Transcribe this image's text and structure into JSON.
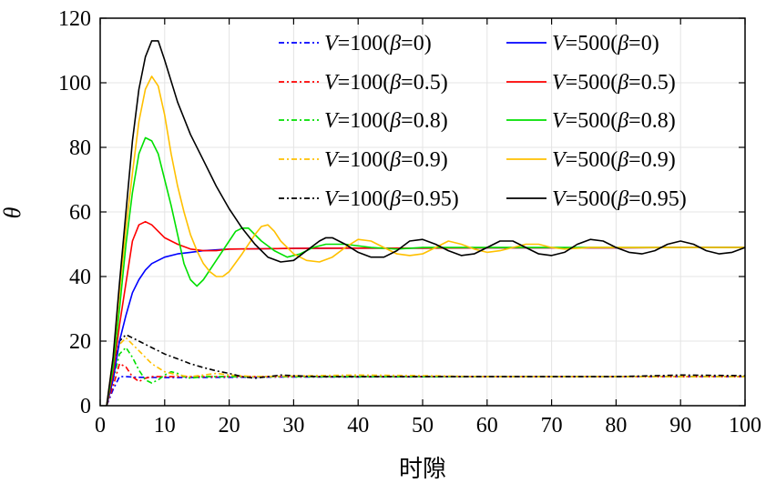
{
  "chart_data": {
    "type": "line",
    "xlabel": "时隙",
    "ylabel": "θ",
    "xlim": [
      0,
      100
    ],
    "ylim": [
      0,
      120
    ],
    "xticks": [
      0,
      10,
      20,
      30,
      40,
      50,
      60,
      70,
      80,
      90,
      100
    ],
    "yticks": [
      0,
      20,
      40,
      60,
      80,
      100,
      120
    ],
    "grid": true,
    "legend_position": "top-right",
    "series": [
      {
        "name": "V=100(β=0)",
        "italic_prefix": "V",
        "rest": "=100(",
        "greek": "β",
        "tail": "=0)",
        "color": "#0000ff",
        "style": "dashdot",
        "points": [
          [
            1,
            0
          ],
          [
            2,
            5
          ],
          [
            3,
            9
          ],
          [
            4,
            9
          ],
          [
            6,
            8.8
          ],
          [
            10,
            8.7
          ],
          [
            20,
            8.8
          ],
          [
            30,
            8.9
          ],
          [
            40,
            8.9
          ],
          [
            60,
            9
          ],
          [
            80,
            9
          ],
          [
            100,
            9
          ]
        ]
      },
      {
        "name": "V=100(β=0.5)",
        "italic_prefix": "V",
        "rest": "=100(",
        "greek": "β",
        "tail": "=0.5)",
        "color": "#ff0000",
        "style": "dashdot",
        "points": [
          [
            1,
            0
          ],
          [
            2,
            6
          ],
          [
            3,
            13
          ],
          [
            4,
            12
          ],
          [
            5,
            9
          ],
          [
            6,
            7.5
          ],
          [
            7,
            8.5
          ],
          [
            8,
            9
          ],
          [
            10,
            9
          ],
          [
            20,
            9
          ],
          [
            40,
            9
          ],
          [
            60,
            9
          ],
          [
            80,
            9
          ],
          [
            100,
            9
          ]
        ]
      },
      {
        "name": "V=100(β=0.8)",
        "italic_prefix": "V",
        "rest": "=100(",
        "greek": "β",
        "tail": "=0.8)",
        "color": "#00e000",
        "style": "dashdot",
        "points": [
          [
            1,
            0
          ],
          [
            2,
            8
          ],
          [
            3,
            16
          ],
          [
            4,
            18
          ],
          [
            5,
            15
          ],
          [
            6,
            11
          ],
          [
            7,
            8
          ],
          [
            8,
            7
          ],
          [
            9,
            8
          ],
          [
            10,
            9.5
          ],
          [
            11,
            10.5
          ],
          [
            12,
            10
          ],
          [
            13,
            9
          ],
          [
            14,
            8.5
          ],
          [
            16,
            9
          ],
          [
            20,
            9
          ],
          [
            30,
            9
          ],
          [
            50,
            9
          ],
          [
            70,
            9
          ],
          [
            100,
            9
          ]
        ]
      },
      {
        "name": "V=100(β=0.9)",
        "italic_prefix": "V",
        "rest": "=100(",
        "greek": "β",
        "tail": "=0.9)",
        "color": "#ffc000",
        "style": "dashdot",
        "points": [
          [
            1,
            0
          ],
          [
            2,
            10
          ],
          [
            3,
            19
          ],
          [
            4,
            21
          ],
          [
            6,
            17
          ],
          [
            8,
            13
          ],
          [
            10,
            10.5
          ],
          [
            12,
            9.5
          ],
          [
            14,
            9
          ],
          [
            16,
            9.5
          ],
          [
            18,
            10
          ],
          [
            20,
            9.5
          ],
          [
            24,
            9
          ],
          [
            30,
            9.2
          ],
          [
            40,
            9.5
          ],
          [
            50,
            9.3
          ],
          [
            60,
            9
          ],
          [
            70,
            9
          ],
          [
            80,
            9
          ],
          [
            90,
            9
          ],
          [
            100,
            9
          ]
        ]
      },
      {
        "name": "V=100(β=0.95)",
        "italic_prefix": "V",
        "rest": "=100(",
        "greek": "β",
        "tail": "=0.95)",
        "color": "#000000",
        "style": "dashdot",
        "points": [
          [
            1,
            0
          ],
          [
            2,
            10
          ],
          [
            3,
            20
          ],
          [
            4,
            22
          ],
          [
            6,
            20
          ],
          [
            8,
            18
          ],
          [
            10,
            16
          ],
          [
            12,
            14.5
          ],
          [
            14,
            13
          ],
          [
            16,
            11.8
          ],
          [
            18,
            10.8
          ],
          [
            20,
            10
          ],
          [
            22,
            9
          ],
          [
            24,
            8.5
          ],
          [
            26,
            9
          ],
          [
            28,
            9.5
          ],
          [
            30,
            9.3
          ],
          [
            34,
            9
          ],
          [
            40,
            9
          ],
          [
            50,
            9
          ],
          [
            60,
            9
          ],
          [
            70,
            9
          ],
          [
            80,
            9
          ],
          [
            90,
            9.5
          ],
          [
            100,
            9.3
          ]
        ]
      },
      {
        "name": "V=500(β=0)",
        "italic_prefix": "V",
        "rest": "=500(",
        "greek": "β",
        "tail": "=0)",
        "color": "#0000ff",
        "style": "solid",
        "points": [
          [
            1,
            0
          ],
          [
            2,
            8
          ],
          [
            3,
            20
          ],
          [
            4,
            28
          ],
          [
            5,
            35
          ],
          [
            6,
            39
          ],
          [
            7,
            42
          ],
          [
            8,
            44
          ],
          [
            10,
            46
          ],
          [
            12,
            47
          ],
          [
            14,
            47.5
          ],
          [
            16,
            48
          ],
          [
            20,
            48.5
          ],
          [
            25,
            48.6
          ],
          [
            30,
            48.7
          ],
          [
            40,
            48.8
          ],
          [
            50,
            48.8
          ],
          [
            60,
            48.9
          ],
          [
            70,
            48.9
          ],
          [
            80,
            48.9
          ],
          [
            90,
            49
          ],
          [
            100,
            49
          ]
        ]
      },
      {
        "name": "V=500(β=0.5)",
        "italic_prefix": "V",
        "rest": "=500(",
        "greek": "β",
        "tail": "=0.5)",
        "color": "#ff0000",
        "style": "solid",
        "points": [
          [
            1,
            0
          ],
          [
            2,
            10
          ],
          [
            3,
            25
          ],
          [
            4,
            38
          ],
          [
            5,
            51
          ],
          [
            6,
            56
          ],
          [
            7,
            57
          ],
          [
            8,
            56
          ],
          [
            9,
            54
          ],
          [
            10,
            52
          ],
          [
            12,
            50
          ],
          [
            14,
            48.5
          ],
          [
            16,
            48
          ],
          [
            18,
            48
          ],
          [
            20,
            48.5
          ],
          [
            25,
            48.6
          ],
          [
            30,
            48.7
          ],
          [
            40,
            48.8
          ],
          [
            50,
            48.8
          ],
          [
            60,
            48.9
          ],
          [
            70,
            48.9
          ],
          [
            80,
            48.9
          ],
          [
            90,
            49
          ],
          [
            100,
            49
          ]
        ]
      },
      {
        "name": "V=500(β=0.8)",
        "italic_prefix": "V",
        "rest": "=500(",
        "greek": "β",
        "tail": "=0.8)",
        "color": "#00e000",
        "style": "solid",
        "points": [
          [
            1,
            0
          ],
          [
            2,
            12
          ],
          [
            3,
            30
          ],
          [
            4,
            50
          ],
          [
            5,
            66
          ],
          [
            6,
            78
          ],
          [
            7,
            83
          ],
          [
            8,
            82
          ],
          [
            9,
            78
          ],
          [
            10,
            70
          ],
          [
            11,
            62
          ],
          [
            12,
            53
          ],
          [
            13,
            44
          ],
          [
            14,
            39
          ],
          [
            15,
            37
          ],
          [
            16,
            39
          ],
          [
            18,
            45
          ],
          [
            20,
            51
          ],
          [
            21,
            54
          ],
          [
            22,
            55
          ],
          [
            23,
            55
          ],
          [
            24,
            53
          ],
          [
            25,
            51
          ],
          [
            27,
            48
          ],
          [
            29,
            46
          ],
          [
            31,
            47
          ],
          [
            33,
            49
          ],
          [
            35,
            50
          ],
          [
            38,
            50
          ],
          [
            42,
            49
          ],
          [
            46,
            48.5
          ],
          [
            50,
            49
          ],
          [
            60,
            49
          ],
          [
            70,
            49
          ],
          [
            80,
            49
          ],
          [
            90,
            49
          ],
          [
            100,
            49
          ]
        ]
      },
      {
        "name": "V=500(β=0.9)",
        "italic_prefix": "V",
        "rest": "=500(",
        "greek": "β",
        "tail": "=0.9)",
        "color": "#ffc000",
        "style": "solid",
        "points": [
          [
            1,
            0
          ],
          [
            2,
            15
          ],
          [
            3,
            35
          ],
          [
            4,
            55
          ],
          [
            5,
            72
          ],
          [
            6,
            88
          ],
          [
            7,
            98
          ],
          [
            8,
            102
          ],
          [
            9,
            99
          ],
          [
            10,
            90
          ],
          [
            11,
            78
          ],
          [
            12,
            68
          ],
          [
            13,
            60
          ],
          [
            14,
            53
          ],
          [
            15,
            48
          ],
          [
            16,
            44
          ],
          [
            17,
            41.5
          ],
          [
            18,
            40
          ],
          [
            19,
            40
          ],
          [
            20,
            41.5
          ],
          [
            22,
            47
          ],
          [
            24,
            53
          ],
          [
            25,
            55.5
          ],
          [
            26,
            56
          ],
          [
            27,
            54
          ],
          [
            28,
            51
          ],
          [
            30,
            47
          ],
          [
            32,
            45
          ],
          [
            34,
            44.5
          ],
          [
            36,
            46
          ],
          [
            38,
            49
          ],
          [
            40,
            51.5
          ],
          [
            42,
            51
          ],
          [
            44,
            49
          ],
          [
            46,
            47
          ],
          [
            48,
            46.5
          ],
          [
            50,
            47
          ],
          [
            52,
            49
          ],
          [
            54,
            51
          ],
          [
            56,
            50
          ],
          [
            58,
            48.5
          ],
          [
            60,
            47.5
          ],
          [
            62,
            48
          ],
          [
            64,
            49
          ],
          [
            66,
            50
          ],
          [
            68,
            50
          ],
          [
            70,
            49
          ],
          [
            72,
            48.5
          ],
          [
            76,
            49
          ],
          [
            80,
            49
          ],
          [
            90,
            49
          ],
          [
            100,
            49
          ]
        ]
      },
      {
        "name": "V=500(β=0.95)",
        "italic_prefix": "V",
        "rest": "=500(",
        "greek": "β",
        "tail": "=0.95)",
        "color": "#000000",
        "style": "solid",
        "points": [
          [
            1,
            0
          ],
          [
            2,
            15
          ],
          [
            3,
            38
          ],
          [
            4,
            60
          ],
          [
            5,
            82
          ],
          [
            6,
            98
          ],
          [
            7,
            108
          ],
          [
            8,
            113
          ],
          [
            9,
            113
          ],
          [
            10,
            107
          ],
          [
            12,
            94
          ],
          [
            14,
            84
          ],
          [
            16,
            76
          ],
          [
            18,
            68
          ],
          [
            20,
            61
          ],
          [
            22,
            55
          ],
          [
            24,
            50
          ],
          [
            26,
            46
          ],
          [
            28,
            44.5
          ],
          [
            30,
            45
          ],
          [
            32,
            48
          ],
          [
            34,
            51
          ],
          [
            35,
            52
          ],
          [
            36,
            52
          ],
          [
            38,
            50
          ],
          [
            40,
            47.5
          ],
          [
            42,
            46
          ],
          [
            44,
            46
          ],
          [
            46,
            48
          ],
          [
            48,
            51
          ],
          [
            50,
            51.5
          ],
          [
            52,
            50
          ],
          [
            54,
            48
          ],
          [
            56,
            46.5
          ],
          [
            58,
            47
          ],
          [
            60,
            49
          ],
          [
            62,
            51
          ],
          [
            64,
            51
          ],
          [
            66,
            49
          ],
          [
            68,
            47
          ],
          [
            70,
            46.5
          ],
          [
            72,
            47.5
          ],
          [
            74,
            50
          ],
          [
            76,
            51.5
          ],
          [
            78,
            51
          ],
          [
            80,
            49
          ],
          [
            82,
            47.5
          ],
          [
            84,
            47
          ],
          [
            86,
            48
          ],
          [
            88,
            50
          ],
          [
            90,
            51
          ],
          [
            92,
            50
          ],
          [
            94,
            48
          ],
          [
            96,
            47
          ],
          [
            98,
            47.5
          ],
          [
            100,
            49
          ]
        ]
      }
    ]
  }
}
